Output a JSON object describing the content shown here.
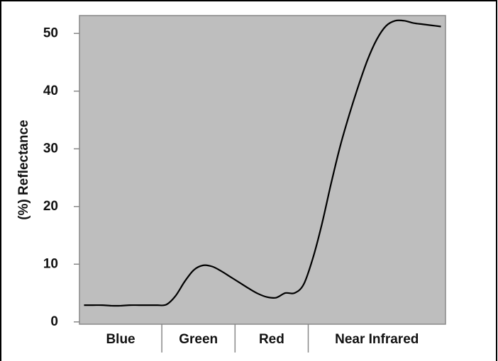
{
  "chart_data": {
    "type": "line",
    "y_label": "(%) Reflectance",
    "categories": [
      "Blue",
      null,
      null,
      null,
      null,
      null,
      null,
      null,
      null,
      "Green",
      null,
      null,
      null,
      null,
      null,
      null,
      null,
      "Red",
      null,
      null,
      null,
      null,
      null,
      null,
      null,
      "Near Infrared",
      null,
      null,
      null,
      null,
      null,
      null,
      null,
      null,
      null,
      null,
      null,
      null,
      null,
      null
    ],
    "series": [
      {
        "color": "#000000",
        "values": [
          2.9,
          2.9,
          2.9,
          2.8,
          2.8,
          2.9,
          2.9,
          2.9,
          2.9,
          3.0,
          4.5,
          7,
          9.0,
          9.8,
          9.6,
          8.8,
          7.8,
          6.8,
          5.8,
          4.9,
          4.3,
          4.2,
          5.0,
          5.0,
          6.5,
          11,
          17,
          24,
          30.5,
          36,
          41,
          45.5,
          49,
          51.3,
          52.2,
          52.2,
          51.8,
          51.6,
          51.4,
          51.2
        ]
      }
    ],
    "ylim": [
      -0.4,
      53.1
    ],
    "yticks": [
      0,
      10,
      20,
      30,
      40,
      50
    ],
    "background": "#bebebe"
  }
}
